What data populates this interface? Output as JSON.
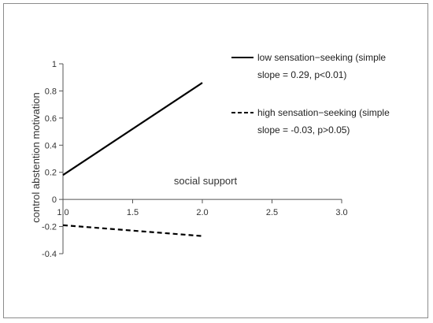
{
  "chart_data": {
    "type": "line",
    "title": "",
    "xlabel": "social support",
    "ylabel": "control abstention motivation",
    "xlim": [
      1.0,
      3.0
    ],
    "ylim": [
      -0.4,
      1.0
    ],
    "x_ticks": [
      "1.0",
      "1.5",
      "2.0",
      "2.5",
      "3.0"
    ],
    "x_tick_values": [
      1.0,
      1.5,
      2.0,
      2.5,
      3.0
    ],
    "y_ticks": [
      "1",
      "0.8",
      "0.6",
      "0.4",
      "0.2",
      "0",
      "-0.2",
      "-0.4"
    ],
    "y_tick_values": [
      1.0,
      0.8,
      0.6,
      0.4,
      0.2,
      0.0,
      -0.2,
      -0.4
    ],
    "legend_position": "top-right",
    "grid": false,
    "series": [
      {
        "name": "low sensation-seeking (simple slope = 0.29, p<0.01)",
        "legend_line1": "low sensation−seeking (simple",
        "legend_line2": "slope = 0.29,  p<0.01)",
        "style": "solid",
        "color": "#000000",
        "x": [
          1.0,
          2.0
        ],
        "y": [
          0.18,
          0.86
        ]
      },
      {
        "name": "high sensation-seeking (simple slope = -0.03, p>0.05)",
        "legend_line1": "high sensation−seeking (simple",
        "legend_line2": "slope = -0.03,  p>0.05)",
        "style": "dashed",
        "color": "#000000",
        "x": [
          1.0,
          2.0
        ],
        "y": [
          -0.19,
          -0.27
        ]
      }
    ]
  }
}
